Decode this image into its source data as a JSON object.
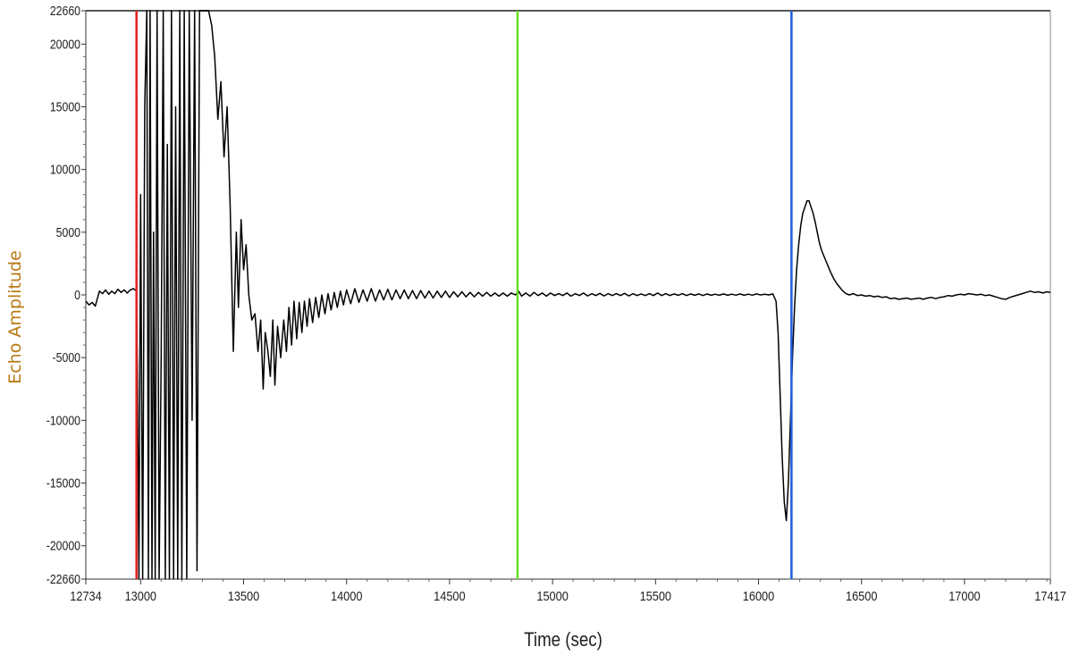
{
  "chart_data": {
    "type": "line",
    "title": "",
    "xlabel": "Time (sec)",
    "ylabel": "Echo Amplitude",
    "xlim": [
      12734,
      17417
    ],
    "ylim": [
      -22660,
      22660
    ],
    "x_ticks": [
      {
        "value": 12734,
        "label": "12734"
      },
      {
        "value": 13000,
        "label": "13000"
      },
      {
        "value": 13500,
        "label": "13500"
      },
      {
        "value": 14000,
        "label": "14000"
      },
      {
        "value": 14500,
        "label": "14500"
      },
      {
        "value": 15000,
        "label": "15000"
      },
      {
        "value": 15500,
        "label": "15500"
      },
      {
        "value": 16000,
        "label": "16000"
      },
      {
        "value": 16500,
        "label": "16500"
      },
      {
        "value": 17000,
        "label": "17000"
      },
      {
        "value": 17417,
        "label": "17417"
      }
    ],
    "y_ticks": [
      {
        "value": 22660,
        "label": "22660"
      },
      {
        "value": 20000,
        "label": "20000"
      },
      {
        "value": 15000,
        "label": "15000"
      },
      {
        "value": 10000,
        "label": "10000"
      },
      {
        "value": 5000,
        "label": "5000"
      },
      {
        "value": 0,
        "label": "0"
      },
      {
        "value": -5000,
        "label": "-5000"
      },
      {
        "value": -10000,
        "label": "-10000"
      },
      {
        "value": -15000,
        "label": "-15000"
      },
      {
        "value": -20000,
        "label": "-20000"
      },
      {
        "value": -22660,
        "label": "-22660"
      }
    ],
    "cursors": [
      {
        "name": "red-cursor",
        "x": 12980,
        "color": "#e0201c"
      },
      {
        "name": "green-cursor",
        "x": 14830,
        "color": "#66e01c"
      },
      {
        "name": "blue-cursor",
        "x": 16160,
        "color": "#1c5ce0"
      }
    ],
    "series": [
      {
        "color": "#000000",
        "points": [
          [
            12734,
            -500
          ],
          [
            12750,
            -800
          ],
          [
            12765,
            -600
          ],
          [
            12780,
            -900
          ],
          [
            12790,
            -300
          ],
          [
            12800,
            300
          ],
          [
            12815,
            100
          ],
          [
            12830,
            400
          ],
          [
            12845,
            50
          ],
          [
            12860,
            300
          ],
          [
            12875,
            100
          ],
          [
            12890,
            450
          ],
          [
            12905,
            200
          ],
          [
            12920,
            400
          ],
          [
            12935,
            150
          ],
          [
            12950,
            400
          ],
          [
            12965,
            500
          ],
          [
            12980,
            300
          ],
          [
            12985,
            -7000
          ],
          [
            12992,
            -22660
          ],
          [
            13000,
            8000
          ],
          [
            13010,
            -22660
          ],
          [
            13020,
            15000
          ],
          [
            13030,
            22660
          ],
          [
            13038,
            -22660
          ],
          [
            13046,
            22660
          ],
          [
            13055,
            -22660
          ],
          [
            13063,
            5000
          ],
          [
            13071,
            -22660
          ],
          [
            13080,
            22660
          ],
          [
            13090,
            -22660
          ],
          [
            13100,
            -5000
          ],
          [
            13110,
            22660
          ],
          [
            13120,
            -22660
          ],
          [
            13130,
            12000
          ],
          [
            13140,
            -22660
          ],
          [
            13150,
            22660
          ],
          [
            13160,
            -22660
          ],
          [
            13170,
            15000
          ],
          [
            13180,
            -22660
          ],
          [
            13190,
            22660
          ],
          [
            13200,
            -22660
          ],
          [
            13212,
            22660
          ],
          [
            13224,
            -22660
          ],
          [
            13236,
            22660
          ],
          [
            13250,
            -10000
          ],
          [
            13262,
            22660
          ],
          [
            13274,
            -22000
          ],
          [
            13286,
            22660
          ],
          [
            13300,
            22660
          ],
          [
            13315,
            22660
          ],
          [
            13330,
            22660
          ],
          [
            13345,
            21500
          ],
          [
            13360,
            19000
          ],
          [
            13375,
            14000
          ],
          [
            13390,
            17000
          ],
          [
            13405,
            11000
          ],
          [
            13420,
            15000
          ],
          [
            13435,
            7000
          ],
          [
            13450,
            -4500
          ],
          [
            13465,
            5000
          ],
          [
            13475,
            -1000
          ],
          [
            13488,
            6000
          ],
          [
            13500,
            2000
          ],
          [
            13512,
            4000
          ],
          [
            13525,
            0
          ],
          [
            13540,
            -2000
          ],
          [
            13555,
            -1500
          ],
          [
            13570,
            -4500
          ],
          [
            13583,
            -2000
          ],
          [
            13595,
            -7500
          ],
          [
            13605,
            -3000
          ],
          [
            13618,
            -4500
          ],
          [
            13630,
            -6500
          ],
          [
            13642,
            -2000
          ],
          [
            13652,
            -7200
          ],
          [
            13665,
            -2500
          ],
          [
            13680,
            -5000
          ],
          [
            13695,
            -2000
          ],
          [
            13708,
            -4500
          ],
          [
            13720,
            -1000
          ],
          [
            13733,
            -4000
          ],
          [
            13745,
            -500
          ],
          [
            13758,
            -3500
          ],
          [
            13770,
            -600
          ],
          [
            13783,
            -3000
          ],
          [
            13795,
            -500
          ],
          [
            13808,
            -2500
          ],
          [
            13820,
            -300
          ],
          [
            13835,
            -2200
          ],
          [
            13850,
            -200
          ],
          [
            13865,
            -1800
          ],
          [
            13880,
            0
          ],
          [
            13895,
            -1500
          ],
          [
            13910,
            100
          ],
          [
            13925,
            -1200
          ],
          [
            13940,
            200
          ],
          [
            13955,
            -1000
          ],
          [
            13970,
            300
          ],
          [
            13985,
            -800
          ],
          [
            14000,
            400
          ],
          [
            14020,
            -700
          ],
          [
            14040,
            500
          ],
          [
            14060,
            -600
          ],
          [
            14080,
            400
          ],
          [
            14100,
            -500
          ],
          [
            14120,
            500
          ],
          [
            14140,
            -500
          ],
          [
            14160,
            400
          ],
          [
            14180,
            -400
          ],
          [
            14200,
            450
          ],
          [
            14220,
            -400
          ],
          [
            14240,
            400
          ],
          [
            14260,
            -300
          ],
          [
            14280,
            400
          ],
          [
            14300,
            -300
          ],
          [
            14320,
            350
          ],
          [
            14340,
            -300
          ],
          [
            14360,
            350
          ],
          [
            14380,
            -250
          ],
          [
            14400,
            300
          ],
          [
            14420,
            -250
          ],
          [
            14440,
            300
          ],
          [
            14460,
            -200
          ],
          [
            14480,
            300
          ],
          [
            14500,
            -200
          ],
          [
            14520,
            250
          ],
          [
            14540,
            -150
          ],
          [
            14560,
            250
          ],
          [
            14580,
            -150
          ],
          [
            14600,
            200
          ],
          [
            14620,
            -150
          ],
          [
            14640,
            200
          ],
          [
            14660,
            -100
          ],
          [
            14680,
            200
          ],
          [
            14700,
            -100
          ],
          [
            14720,
            150
          ],
          [
            14740,
            -100
          ],
          [
            14760,
            150
          ],
          [
            14780,
            -100
          ],
          [
            14800,
            150
          ],
          [
            14820,
            0
          ],
          [
            14835,
            300
          ],
          [
            14850,
            -100
          ],
          [
            14870,
            150
          ],
          [
            14890,
            -100
          ],
          [
            14910,
            200
          ],
          [
            14930,
            -50
          ],
          [
            14950,
            150
          ],
          [
            14970,
            -100
          ],
          [
            14990,
            150
          ],
          [
            15010,
            -50
          ],
          [
            15030,
            100
          ],
          [
            15050,
            -50
          ],
          [
            15070,
            150
          ],
          [
            15090,
            -100
          ],
          [
            15110,
            100
          ],
          [
            15130,
            -50
          ],
          [
            15150,
            150
          ],
          [
            15170,
            -80
          ],
          [
            15190,
            100
          ],
          [
            15210,
            -50
          ],
          [
            15230,
            120
          ],
          [
            15250,
            -80
          ],
          [
            15270,
            100
          ],
          [
            15290,
            -50
          ],
          [
            15310,
            100
          ],
          [
            15330,
            -50
          ],
          [
            15350,
            120
          ],
          [
            15370,
            -80
          ],
          [
            15390,
            100
          ],
          [
            15410,
            -50
          ],
          [
            15430,
            80
          ],
          [
            15450,
            -50
          ],
          [
            15470,
            100
          ],
          [
            15490,
            -50
          ],
          [
            15510,
            150
          ],
          [
            15530,
            -50
          ],
          [
            15550,
            100
          ],
          [
            15570,
            -50
          ],
          [
            15590,
            80
          ],
          [
            15610,
            -30
          ],
          [
            15630,
            100
          ],
          [
            15650,
            -50
          ],
          [
            15670,
            80
          ],
          [
            15690,
            -30
          ],
          [
            15710,
            80
          ],
          [
            15730,
            -50
          ],
          [
            15750,
            80
          ],
          [
            15770,
            -30
          ],
          [
            15790,
            60
          ],
          [
            15810,
            -30
          ],
          [
            15830,
            80
          ],
          [
            15850,
            -30
          ],
          [
            15870,
            60
          ],
          [
            15890,
            -20
          ],
          [
            15910,
            80
          ],
          [
            15930,
            -30
          ],
          [
            15950,
            60
          ],
          [
            15970,
            -20
          ],
          [
            15990,
            80
          ],
          [
            16010,
            0
          ],
          [
            16030,
            60
          ],
          [
            16050,
            0
          ],
          [
            16070,
            80
          ],
          [
            16085,
            -500
          ],
          [
            16095,
            -3000
          ],
          [
            16105,
            -8000
          ],
          [
            16115,
            -13000
          ],
          [
            16125,
            -16500
          ],
          [
            16135,
            -18000
          ],
          [
            16145,
            -15000
          ],
          [
            16155,
            -10000
          ],
          [
            16165,
            -5000
          ],
          [
            16175,
            -1000
          ],
          [
            16185,
            2000
          ],
          [
            16195,
            4000
          ],
          [
            16205,
            5500
          ],
          [
            16215,
            6500
          ],
          [
            16225,
            7000
          ],
          [
            16235,
            7500
          ],
          [
            16245,
            7500
          ],
          [
            16255,
            7000
          ],
          [
            16265,
            6500
          ],
          [
            16275,
            5800
          ],
          [
            16285,
            5000
          ],
          [
            16295,
            4200
          ],
          [
            16305,
            3600
          ],
          [
            16320,
            3000
          ],
          [
            16335,
            2400
          ],
          [
            16350,
            1800
          ],
          [
            16365,
            1300
          ],
          [
            16380,
            900
          ],
          [
            16395,
            600
          ],
          [
            16410,
            300
          ],
          [
            16425,
            100
          ],
          [
            16440,
            0
          ],
          [
            16460,
            100
          ],
          [
            16480,
            -50
          ],
          [
            16500,
            0
          ],
          [
            16520,
            -100
          ],
          [
            16540,
            -50
          ],
          [
            16560,
            -150
          ],
          [
            16580,
            -100
          ],
          [
            16600,
            -200
          ],
          [
            16620,
            -150
          ],
          [
            16640,
            -300
          ],
          [
            16660,
            -250
          ],
          [
            16680,
            -350
          ],
          [
            16700,
            -300
          ],
          [
            16720,
            -250
          ],
          [
            16740,
            -350
          ],
          [
            16760,
            -300
          ],
          [
            16780,
            -250
          ],
          [
            16800,
            -350
          ],
          [
            16820,
            -250
          ],
          [
            16840,
            -200
          ],
          [
            16860,
            -300
          ],
          [
            16880,
            -200
          ],
          [
            16900,
            -150
          ],
          [
            16920,
            -50
          ],
          [
            16940,
            -100
          ],
          [
            16960,
            0
          ],
          [
            16980,
            50
          ],
          [
            17000,
            0
          ],
          [
            17020,
            100
          ],
          [
            17040,
            50
          ],
          [
            17060,
            0
          ],
          [
            17080,
            50
          ],
          [
            17100,
            -50
          ],
          [
            17120,
            0
          ],
          [
            17140,
            -100
          ],
          [
            17160,
            -200
          ],
          [
            17180,
            -300
          ],
          [
            17200,
            -350
          ],
          [
            17220,
            -200
          ],
          [
            17240,
            -100
          ],
          [
            17260,
            0
          ],
          [
            17280,
            100
          ],
          [
            17300,
            200
          ],
          [
            17320,
            300
          ],
          [
            17340,
            200
          ],
          [
            17360,
            250
          ],
          [
            17380,
            150
          ],
          [
            17400,
            250
          ],
          [
            17417,
            200
          ]
        ]
      }
    ]
  }
}
